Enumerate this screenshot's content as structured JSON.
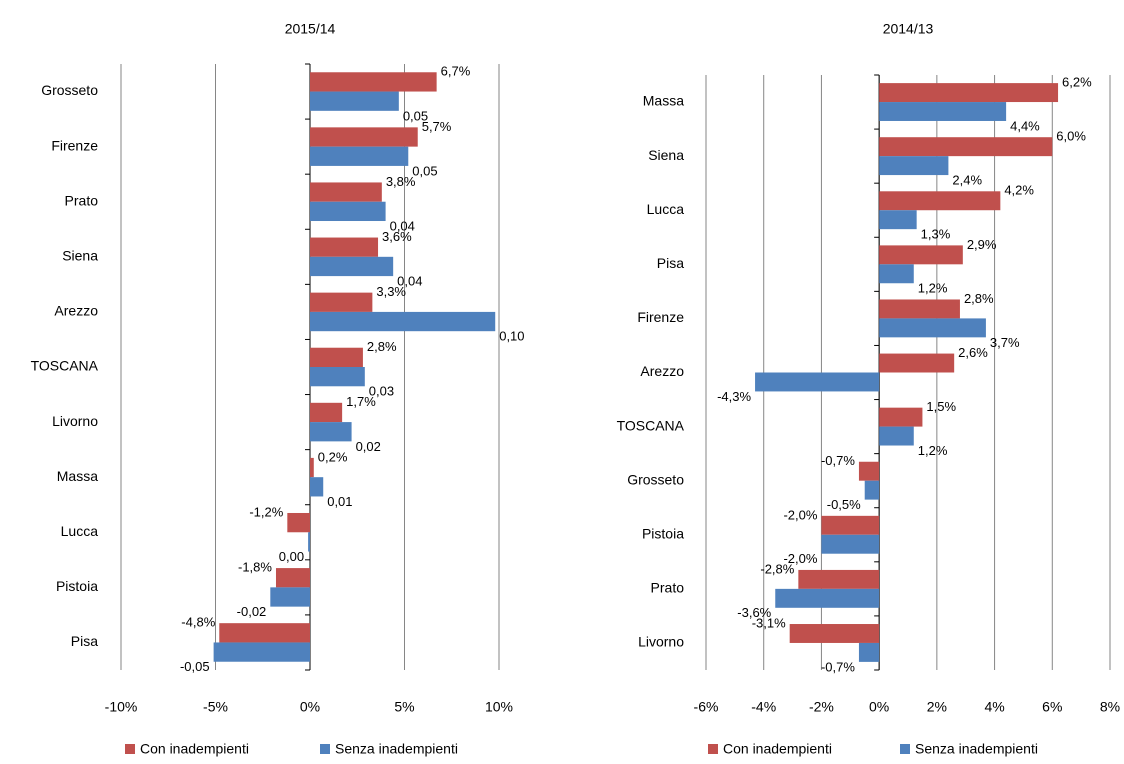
{
  "chart_data": [
    {
      "type": "bar",
      "orientation": "horizontal",
      "title": "2015/14",
      "categories": [
        "Grosseto",
        "Firenze",
        "Prato",
        "Siena",
        "Arezzo",
        "TOSCANA",
        "Livorno",
        "Massa",
        "Lucca",
        "Pistoia",
        "Pisa"
      ],
      "series": [
        {
          "name": "Con inadempienti",
          "color": "#c0504d",
          "values": [
            6.7,
            5.7,
            3.8,
            3.6,
            3.3,
            2.8,
            1.7,
            0.2,
            -1.2,
            -1.8,
            -4.8
          ],
          "value_labels": [
            "6,7%",
            "5,7%",
            "3,8%",
            "3,6%",
            "3,3%",
            "2,8%",
            "1,7%",
            "0,2%",
            "-1,2%",
            "-1,8%",
            "-4,8%"
          ]
        },
        {
          "name": "Senza inadempienti",
          "color": "#4f81bd",
          "values": [
            4.7,
            5.2,
            4.0,
            4.4,
            9.8,
            2.9,
            2.2,
            0.7,
            -0.1,
            -2.1,
            -5.1
          ],
          "value_labels": [
            "0,05",
            "0,05",
            "0,04",
            "0,04",
            "0,10",
            "0,03",
            "0,02",
            "0,01",
            "0,00",
            "-0,02",
            "-0,05"
          ]
        }
      ],
      "xlim": [
        -10,
        10
      ],
      "xticks": [
        {
          "value": -10,
          "label": "-10%"
        },
        {
          "value": -5,
          "label": "-5%"
        },
        {
          "value": 0,
          "label": "0%"
        },
        {
          "value": 5,
          "label": "5%"
        },
        {
          "value": 10,
          "label": "10%"
        }
      ],
      "grid": true,
      "legend": "bottom"
    },
    {
      "type": "bar",
      "orientation": "horizontal",
      "title": "2014/13",
      "categories": [
        "Massa",
        "Siena",
        "Lucca",
        "Pisa",
        "Firenze",
        "Arezzo",
        "TOSCANA",
        "Grosseto",
        "Pistoia",
        "Prato",
        "Livorno"
      ],
      "series": [
        {
          "name": "Con inadempienti",
          "color": "#c0504d",
          "values": [
            6.2,
            6.0,
            4.2,
            2.9,
            2.8,
            2.6,
            1.5,
            -0.7,
            -2.0,
            -2.8,
            -3.1
          ],
          "value_labels": [
            "6,2%",
            "6,0%",
            "4,2%",
            "2,9%",
            "2,8%",
            "2,6%",
            "1,5%",
            "-0,7%",
            "-2,0%",
            "-2,8%",
            "-3,1%"
          ]
        },
        {
          "name": "Senza inadempienti",
          "color": "#4f81bd",
          "values": [
            4.4,
            2.4,
            1.3,
            1.2,
            3.7,
            -4.3,
            1.2,
            -0.5,
            -2.0,
            -3.6,
            -0.7
          ],
          "value_labels": [
            "4,4%",
            "2,4%",
            "1,3%",
            "1,2%",
            "3,7%",
            "-4,3%",
            "1,2%",
            "-0,5%",
            "-2,0%",
            "-3,6%",
            "-0,7%"
          ]
        }
      ],
      "xlim": [
        -6,
        8
      ],
      "xticks": [
        {
          "value": -6,
          "label": "-6%"
        },
        {
          "value": -4,
          "label": "-4%"
        },
        {
          "value": -2,
          "label": "-2%"
        },
        {
          "value": 0,
          "label": "0%"
        },
        {
          "value": 2,
          "label": "2%"
        },
        {
          "value": 4,
          "label": "4%"
        },
        {
          "value": 6,
          "label": "6%"
        },
        {
          "value": 8,
          "label": "8%"
        }
      ],
      "grid": true,
      "legend": "bottom"
    }
  ]
}
